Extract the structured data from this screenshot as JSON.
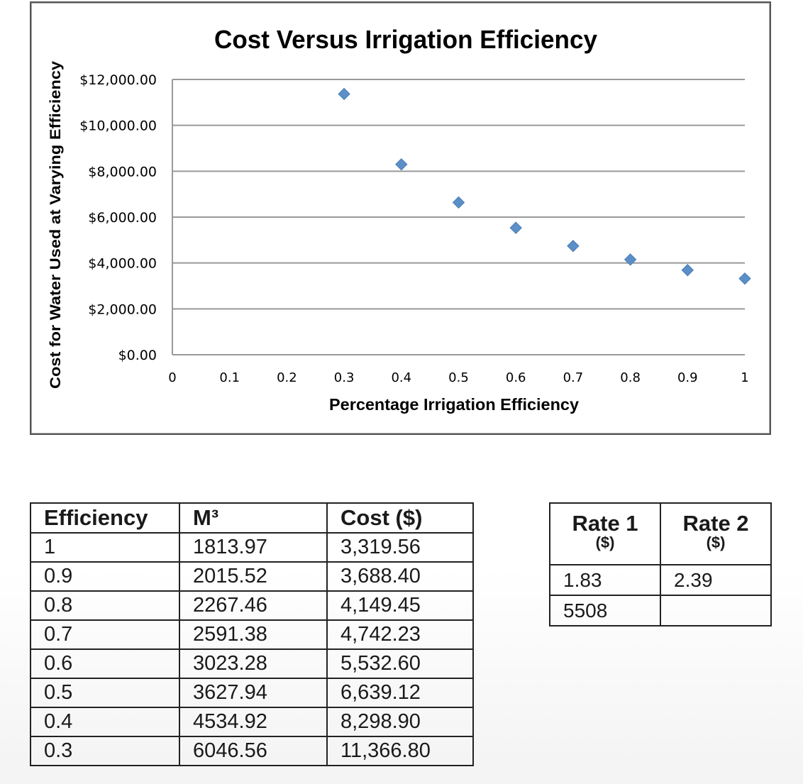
{
  "chart_data": {
    "type": "scatter",
    "title": "Cost Versus Irrigation Efficiency",
    "xlabel": "Percentage Irrigation Efficiency",
    "ylabel": "Cost for Water Used at Varying Efficiency",
    "xlim": [
      0,
      1
    ],
    "ylim": [
      0,
      12000
    ],
    "x_ticks": [
      "0",
      "0.1",
      "0.2",
      "0.3",
      "0.4",
      "0.5",
      "0.6",
      "0.7",
      "0.8",
      "0.9",
      "1"
    ],
    "y_ticks": [
      "$0.00",
      "$2,000.00",
      "$4,000.00",
      "$6,000.00",
      "$8,000.00",
      "$10,000.00",
      "$12,000.00"
    ],
    "grid": "horizontal",
    "marker_color": "#5b8fc7",
    "x": [
      0.3,
      0.4,
      0.5,
      0.6,
      0.7,
      0.8,
      0.9,
      1
    ],
    "y": [
      11366.8,
      8298.9,
      6639.12,
      5532.6,
      4742.23,
      4149.45,
      3688.4,
      3319.56
    ]
  },
  "data_table": {
    "headers": [
      "Efficiency",
      "M³",
      "Cost ($)"
    ],
    "rows": [
      [
        "1",
        "1813.97",
        "3,319.56"
      ],
      [
        "0.9",
        "2015.52",
        "3,688.40"
      ],
      [
        "0.8",
        "2267.46",
        "4,149.45"
      ],
      [
        "0.7",
        "2591.38",
        "4,742.23"
      ],
      [
        "0.6",
        "3023.28",
        "5,532.60"
      ],
      [
        "0.5",
        "3627.94",
        "6,639.12"
      ],
      [
        "0.4",
        "4534.92",
        "8,298.90"
      ],
      [
        "0.3",
        "6046.56",
        "11,366.80"
      ]
    ]
  },
  "rate_table": {
    "headers": [
      {
        "title": "Rate 1",
        "unit": "($)"
      },
      {
        "title": "Rate 2",
        "unit": "($)"
      }
    ],
    "rows": [
      [
        "1.83",
        "2.39"
      ],
      [
        "5508",
        ""
      ]
    ]
  }
}
